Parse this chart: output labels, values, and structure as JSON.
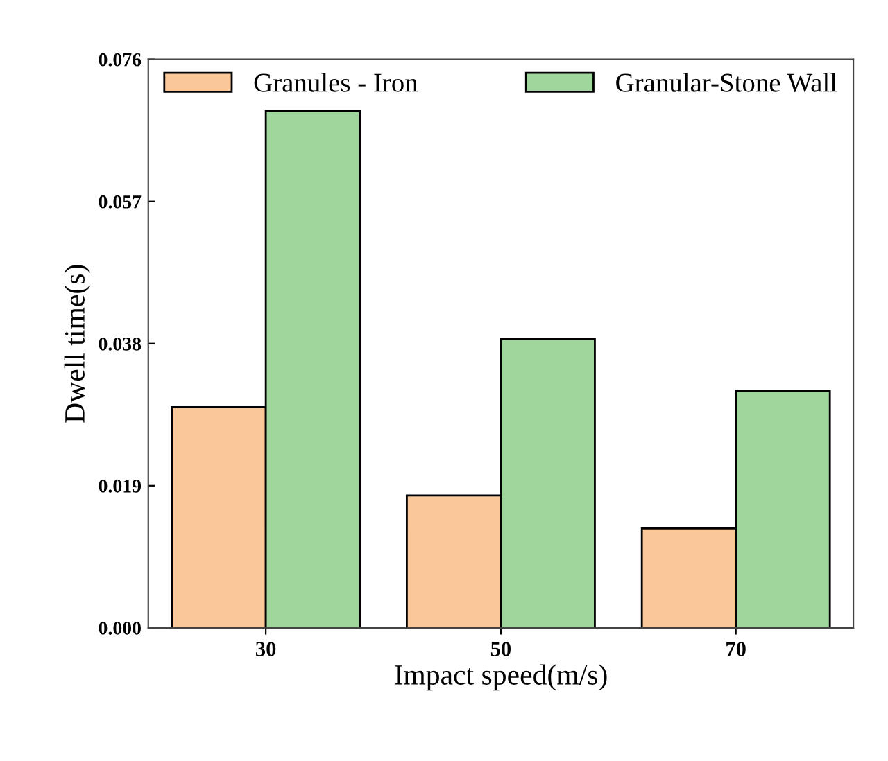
{
  "chart_data": {
    "type": "bar",
    "xlabel": "Impact speed(m/s)",
    "ylabel": "Dwell time(s)",
    "categories": [
      "30",
      "50",
      "70"
    ],
    "series": [
      {
        "name": "Granules - Iron",
        "color": "#fac898",
        "values": [
          0.0295,
          0.0177,
          0.0133
        ]
      },
      {
        "name": "Granular-Stone Wall",
        "color": "#9ed69c",
        "values": [
          0.0691,
          0.0386,
          0.0317
        ]
      }
    ],
    "ylim": [
      0,
      0.076
    ],
    "yticks": [
      {
        "value": 0,
        "label": "0.000"
      },
      {
        "value": 0.019,
        "label": "0.019"
      },
      {
        "value": 0.038,
        "label": "0.038"
      },
      {
        "value": 0.057,
        "label": "0.057"
      },
      {
        "value": 0.076,
        "label": "0.076"
      }
    ],
    "grid": false,
    "legend": "top"
  }
}
